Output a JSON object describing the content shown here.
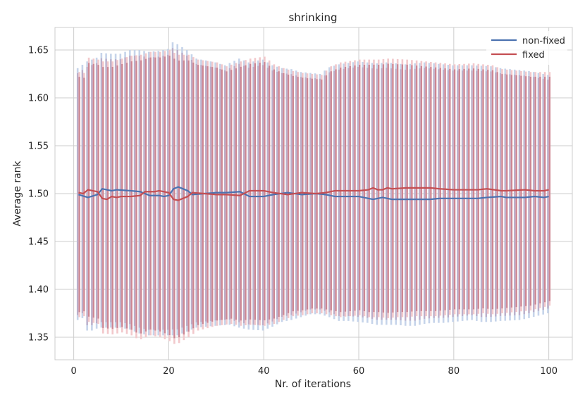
{
  "chart_data": {
    "type": "line",
    "title": "shrinking",
    "xlabel": "Nr. of iterations",
    "ylabel": "Average rank",
    "xlim": [
      -3.95,
      104.95
    ],
    "ylim": [
      1.3265,
      1.6735
    ],
    "xticks": [
      0,
      20,
      40,
      60,
      80,
      100
    ],
    "xtick_labels": [
      "0",
      "20",
      "40",
      "60",
      "80",
      "100"
    ],
    "yticks": [
      1.35,
      1.4,
      1.45,
      1.5,
      1.55,
      1.6,
      1.65
    ],
    "ytick_labels": [
      "1.35",
      "1.40",
      "1.45",
      "1.50",
      "1.55",
      "1.60",
      "1.65"
    ],
    "grid": true,
    "legend_position": "top-right",
    "x": [
      1,
      2,
      3,
      4,
      5,
      6,
      7,
      8,
      9,
      10,
      11,
      12,
      13,
      14,
      15,
      16,
      17,
      18,
      19,
      20,
      21,
      22,
      23,
      24,
      25,
      26,
      27,
      28,
      29,
      30,
      31,
      32,
      33,
      34,
      35,
      36,
      37,
      38,
      39,
      40,
      41,
      42,
      43,
      44,
      45,
      46,
      47,
      48,
      49,
      50,
      51,
      52,
      53,
      54,
      55,
      56,
      57,
      58,
      59,
      60,
      61,
      62,
      63,
      64,
      65,
      66,
      67,
      68,
      69,
      70,
      71,
      72,
      73,
      74,
      75,
      76,
      77,
      78,
      79,
      80,
      81,
      82,
      83,
      84,
      85,
      86,
      87,
      88,
      89,
      90,
      91,
      92,
      93,
      94,
      95,
      96,
      97,
      98,
      99,
      100
    ],
    "series": [
      {
        "name": "non-fixed",
        "color": "#4c72b0",
        "mean_knots": [
          [
            1,
            1.499
          ],
          [
            3,
            1.496
          ],
          [
            5,
            1.499
          ],
          [
            6,
            1.505
          ],
          [
            8,
            1.503
          ],
          [
            9,
            1.504
          ],
          [
            12,
            1.503
          ],
          [
            14,
            1.502
          ],
          [
            16,
            1.498
          ],
          [
            18,
            1.498
          ],
          [
            19,
            1.497
          ],
          [
            20,
            1.498
          ],
          [
            21,
            1.505
          ],
          [
            22,
            1.507
          ],
          [
            24,
            1.503
          ],
          [
            25,
            1.499
          ],
          [
            30,
            1.501
          ],
          [
            32,
            1.501
          ],
          [
            35,
            1.502
          ],
          [
            37,
            1.497
          ],
          [
            40,
            1.497
          ],
          [
            42,
            1.499
          ],
          [
            45,
            1.501
          ],
          [
            48,
            1.499
          ],
          [
            51,
            1.5
          ],
          [
            53,
            1.499
          ],
          [
            55,
            1.497
          ],
          [
            57,
            1.497
          ],
          [
            60,
            1.497
          ],
          [
            62,
            1.495
          ],
          [
            63,
            1.494
          ],
          [
            65,
            1.496
          ],
          [
            67,
            1.494
          ],
          [
            70,
            1.494
          ],
          [
            72,
            1.494
          ],
          [
            75,
            1.494
          ],
          [
            77,
            1.495
          ],
          [
            80,
            1.495
          ],
          [
            85,
            1.495
          ],
          [
            87,
            1.496
          ],
          [
            90,
            1.497
          ],
          [
            91,
            1.496
          ],
          [
            95,
            1.496
          ],
          [
            97,
            1.497
          ],
          [
            99,
            1.496
          ],
          [
            100,
            1.497
          ]
        ],
        "upper_knots": [
          [
            1,
            1.631
          ],
          [
            3,
            1.638
          ],
          [
            5,
            1.642
          ],
          [
            6,
            1.647
          ],
          [
            8,
            1.646
          ],
          [
            10,
            1.646
          ],
          [
            12,
            1.65
          ],
          [
            14,
            1.65
          ],
          [
            16,
            1.648
          ],
          [
            18,
            1.649
          ],
          [
            20,
            1.651
          ],
          [
            21,
            1.658
          ],
          [
            22,
            1.656
          ],
          [
            24,
            1.65
          ],
          [
            26,
            1.641
          ],
          [
            30,
            1.637
          ],
          [
            32,
            1.634
          ],
          [
            35,
            1.641
          ],
          [
            37,
            1.637
          ],
          [
            40,
            1.64
          ],
          [
            42,
            1.634
          ],
          [
            44,
            1.631
          ],
          [
            46,
            1.63
          ],
          [
            48,
            1.627
          ],
          [
            50,
            1.626
          ],
          [
            52,
            1.625
          ],
          [
            54,
            1.632
          ],
          [
            56,
            1.635
          ],
          [
            60,
            1.638
          ],
          [
            62,
            1.637
          ],
          [
            64,
            1.636
          ],
          [
            66,
            1.637
          ],
          [
            70,
            1.635
          ],
          [
            72,
            1.636
          ],
          [
            74,
            1.637
          ],
          [
            76,
            1.636
          ],
          [
            80,
            1.634
          ],
          [
            84,
            1.634
          ],
          [
            88,
            1.633
          ],
          [
            90,
            1.631
          ],
          [
            94,
            1.629
          ],
          [
            96,
            1.628
          ],
          [
            100,
            1.624
          ]
        ],
        "lower_knots": [
          [
            1,
            1.368
          ],
          [
            2,
            1.37
          ],
          [
            3,
            1.357
          ],
          [
            4,
            1.357
          ],
          [
            5,
            1.359
          ],
          [
            6,
            1.36
          ],
          [
            8,
            1.36
          ],
          [
            10,
            1.36
          ],
          [
            12,
            1.358
          ],
          [
            14,
            1.354
          ],
          [
            16,
            1.352
          ],
          [
            18,
            1.352
          ],
          [
            20,
            1.352
          ],
          [
            21,
            1.352
          ],
          [
            22,
            1.352
          ],
          [
            24,
            1.356
          ],
          [
            26,
            1.36
          ],
          [
            30,
            1.362
          ],
          [
            33,
            1.363
          ],
          [
            35,
            1.36
          ],
          [
            37,
            1.358
          ],
          [
            40,
            1.357
          ],
          [
            42,
            1.361
          ],
          [
            44,
            1.366
          ],
          [
            46,
            1.368
          ],
          [
            48,
            1.371
          ],
          [
            50,
            1.374
          ],
          [
            52,
            1.374
          ],
          [
            54,
            1.371
          ],
          [
            56,
            1.367
          ],
          [
            58,
            1.367
          ],
          [
            60,
            1.366
          ],
          [
            62,
            1.365
          ],
          [
            64,
            1.363
          ],
          [
            66,
            1.363
          ],
          [
            68,
            1.363
          ],
          [
            70,
            1.362
          ],
          [
            72,
            1.362
          ],
          [
            74,
            1.364
          ],
          [
            76,
            1.365
          ],
          [
            78,
            1.365
          ],
          [
            80,
            1.366
          ],
          [
            84,
            1.368
          ],
          [
            86,
            1.366
          ],
          [
            88,
            1.366
          ],
          [
            90,
            1.367
          ],
          [
            94,
            1.368
          ],
          [
            96,
            1.37
          ],
          [
            100,
            1.375
          ]
        ]
      },
      {
        "name": "fixed",
        "color": "#c44e52",
        "mean_knots": [
          [
            1,
            1.501
          ],
          [
            2,
            1.5
          ],
          [
            3,
            1.504
          ],
          [
            5,
            1.502
          ],
          [
            6,
            1.495
          ],
          [
            7,
            1.494
          ],
          [
            8,
            1.497
          ],
          [
            9,
            1.496
          ],
          [
            10,
            1.497
          ],
          [
            12,
            1.497
          ],
          [
            14,
            1.498
          ],
          [
            15,
            1.502
          ],
          [
            17,
            1.502
          ],
          [
            18,
            1.503
          ],
          [
            20,
            1.501
          ],
          [
            21,
            1.494
          ],
          [
            22,
            1.493
          ],
          [
            24,
            1.497
          ],
          [
            25,
            1.501
          ],
          [
            30,
            1.499
          ],
          [
            32,
            1.499
          ],
          [
            35,
            1.498
          ],
          [
            37,
            1.503
          ],
          [
            40,
            1.503
          ],
          [
            42,
            1.501
          ],
          [
            45,
            1.499
          ],
          [
            48,
            1.501
          ],
          [
            51,
            1.5
          ],
          [
            53,
            1.501
          ],
          [
            55,
            1.503
          ],
          [
            57,
            1.503
          ],
          [
            60,
            1.503
          ],
          [
            62,
            1.504
          ],
          [
            63,
            1.506
          ],
          [
            64,
            1.504
          ],
          [
            65,
            1.504
          ],
          [
            66,
            1.506
          ],
          [
            67,
            1.505
          ],
          [
            70,
            1.506
          ],
          [
            72,
            1.506
          ],
          [
            75,
            1.506
          ],
          [
            77,
            1.505
          ],
          [
            80,
            1.504
          ],
          [
            85,
            1.504
          ],
          [
            87,
            1.505
          ],
          [
            90,
            1.503
          ],
          [
            91,
            1.503
          ],
          [
            95,
            1.504
          ],
          [
            97,
            1.503
          ],
          [
            99,
            1.503
          ],
          [
            100,
            1.504
          ]
        ],
        "upper_knots": [
          [
            1,
            1.627
          ],
          [
            2,
            1.626
          ],
          [
            3,
            1.642
          ],
          [
            5,
            1.64
          ],
          [
            6,
            1.638
          ],
          [
            8,
            1.638
          ],
          [
            10,
            1.641
          ],
          [
            12,
            1.644
          ],
          [
            14,
            1.645
          ],
          [
            16,
            1.648
          ],
          [
            18,
            1.648
          ],
          [
            20,
            1.65
          ],
          [
            21,
            1.647
          ],
          [
            22,
            1.645
          ],
          [
            24,
            1.645
          ],
          [
            26,
            1.64
          ],
          [
            30,
            1.637
          ],
          [
            32,
            1.633
          ],
          [
            35,
            1.638
          ],
          [
            37,
            1.641
          ],
          [
            40,
            1.643
          ],
          [
            42,
            1.635
          ],
          [
            44,
            1.631
          ],
          [
            46,
            1.628
          ],
          [
            48,
            1.626
          ],
          [
            50,
            1.625
          ],
          [
            52,
            1.624
          ],
          [
            54,
            1.633
          ],
          [
            56,
            1.637
          ],
          [
            60,
            1.64
          ],
          [
            62,
            1.64
          ],
          [
            64,
            1.64
          ],
          [
            66,
            1.641
          ],
          [
            70,
            1.64
          ],
          [
            72,
            1.639
          ],
          [
            74,
            1.638
          ],
          [
            76,
            1.637
          ],
          [
            80,
            1.635
          ],
          [
            84,
            1.636
          ],
          [
            88,
            1.634
          ],
          [
            90,
            1.63
          ],
          [
            94,
            1.628
          ],
          [
            96,
            1.627
          ],
          [
            100,
            1.627
          ]
        ],
        "lower_knots": [
          [
            1,
            1.371
          ],
          [
            2,
            1.372
          ],
          [
            3,
            1.366
          ],
          [
            5,
            1.364
          ],
          [
            6,
            1.354
          ],
          [
            8,
            1.353
          ],
          [
            10,
            1.355
          ],
          [
            12,
            1.352
          ],
          [
            13,
            1.349
          ],
          [
            14,
            1.348
          ],
          [
            16,
            1.352
          ],
          [
            18,
            1.35
          ],
          [
            20,
            1.346
          ],
          [
            21,
            1.343
          ],
          [
            22,
            1.344
          ],
          [
            24,
            1.35
          ],
          [
            26,
            1.357
          ],
          [
            30,
            1.362
          ],
          [
            33,
            1.364
          ],
          [
            35,
            1.362
          ],
          [
            37,
            1.363
          ],
          [
            40,
            1.362
          ],
          [
            42,
            1.364
          ],
          [
            44,
            1.368
          ],
          [
            46,
            1.372
          ],
          [
            48,
            1.373
          ],
          [
            50,
            1.375
          ],
          [
            52,
            1.375
          ],
          [
            54,
            1.373
          ],
          [
            56,
            1.371
          ],
          [
            58,
            1.372
          ],
          [
            60,
            1.373
          ],
          [
            62,
            1.371
          ],
          [
            64,
            1.371
          ],
          [
            66,
            1.37
          ],
          [
            68,
            1.371
          ],
          [
            70,
            1.371
          ],
          [
            72,
            1.372
          ],
          [
            74,
            1.372
          ],
          [
            76,
            1.372
          ],
          [
            78,
            1.373
          ],
          [
            80,
            1.374
          ],
          [
            84,
            1.374
          ],
          [
            86,
            1.375
          ],
          [
            88,
            1.374
          ],
          [
            90,
            1.375
          ],
          [
            94,
            1.377
          ],
          [
            96,
            1.378
          ],
          [
            100,
            1.383
          ]
        ]
      }
    ]
  }
}
